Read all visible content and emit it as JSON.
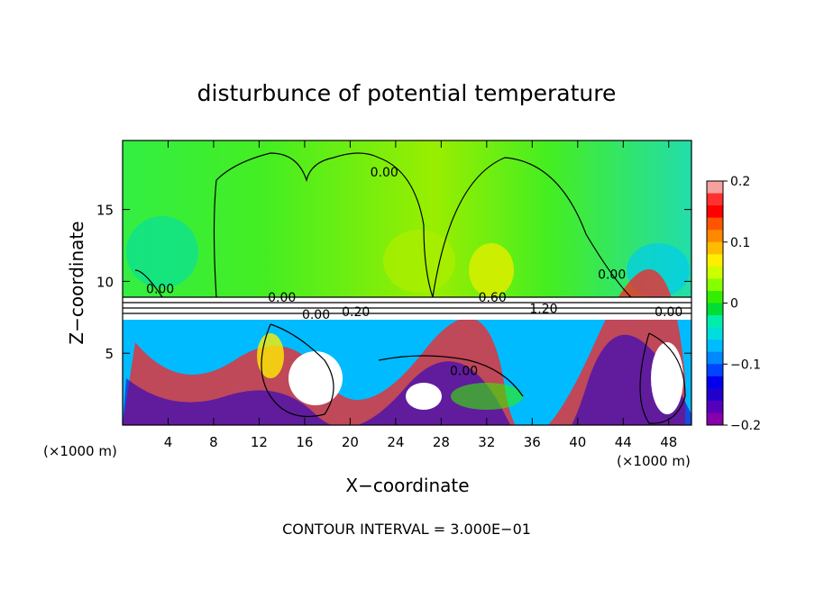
{
  "chart_data": {
    "type": "heatmap",
    "title": "disturbunce of potential temperature",
    "xlabel": "X−coordinate",
    "ylabel": "Z−coordinate",
    "x_unit_left": "(×1000 m)",
    "x_unit_right": "(×1000 m)",
    "footer": "CONTOUR INTERVAL = 3.000E−01",
    "xlim": [
      0,
      50
    ],
    "ylim": [
      0,
      19.8
    ],
    "x_ticks": [
      "4",
      "8",
      "12",
      "16",
      "20",
      "24",
      "28",
      "32",
      "36",
      "40",
      "44",
      "48"
    ],
    "x_tick_values": [
      4,
      8,
      12,
      16,
      20,
      24,
      28,
      32,
      36,
      40,
      44,
      48
    ],
    "y_ticks": [
      "5",
      "10",
      "15"
    ],
    "y_tick_values": [
      5,
      10,
      15
    ],
    "colorbar": {
      "range": [
        -0.2,
        0.2
      ],
      "tick_labels": [
        "0.2",
        "0.1",
        "0",
        "−0.1",
        "−0.2"
      ],
      "tick_values": [
        0.2,
        0.1,
        0,
        -0.1,
        -0.2
      ],
      "colors": [
        "#f7a0a0",
        "#ff3030",
        "#ff0000",
        "#ff5500",
        "#ff8800",
        "#ffbb00",
        "#ffee00",
        "#ccff00",
        "#88ff00",
        "#33ee00",
        "#00dd33",
        "#00eeaa",
        "#00dddd",
        "#00bbff",
        "#0088ff",
        "#0044ff",
        "#0000ee",
        "#2200cc",
        "#5500bb",
        "#8800aa"
      ]
    },
    "contour_labels": [
      {
        "text": "0.00",
        "x": 3.3,
        "z": 9.5
      },
      {
        "text": "0.00",
        "x": 23,
        "z": 17.6
      },
      {
        "text": "0.00",
        "x": 43,
        "z": 10.5
      },
      {
        "text": "0.00",
        "x": 14,
        "z": 8.9
      },
      {
        "text": "0.60",
        "x": 32.5,
        "z": 8.9
      },
      {
        "text": "0.00",
        "x": 17,
        "z": 7.7
      },
      {
        "text": "0.20",
        "x": 20.5,
        "z": 7.9
      },
      {
        "text": "1.20",
        "x": 37,
        "z": 8.1
      },
      {
        "text": "0.00",
        "x": 48,
        "z": 7.9
      },
      {
        "text": "0.00",
        "x": 30,
        "z": 3.8
      }
    ]
  }
}
